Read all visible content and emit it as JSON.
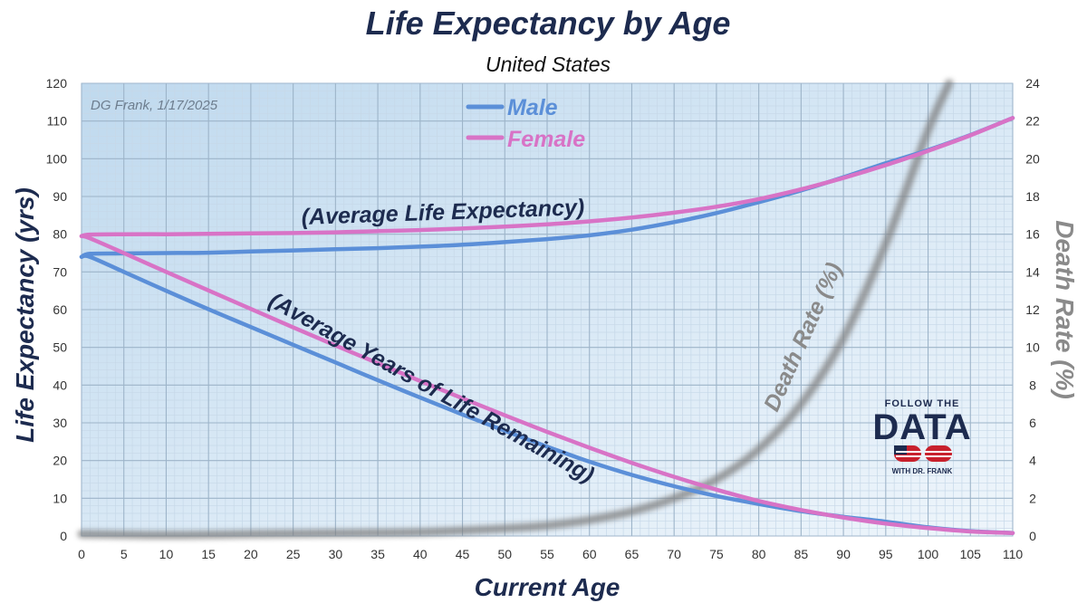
{
  "chart_data": {
    "type": "line",
    "title": "Life Expectancy by Age",
    "subtitle": "United States",
    "credit": "DG Frank, 1/17/2025",
    "xlabel": "Current Age",
    "ylabel": "Life Expectancy (yrs)",
    "y2label": "Death Rate (%)",
    "xlim": [
      0,
      110
    ],
    "ylim": [
      0,
      120
    ],
    "y2lim": [
      0,
      24
    ],
    "x_ticks": [
      0,
      5,
      10,
      15,
      20,
      25,
      30,
      35,
      40,
      45,
      50,
      55,
      60,
      65,
      70,
      75,
      80,
      85,
      90,
      95,
      100,
      105,
      110
    ],
    "y_ticks": [
      0,
      10,
      20,
      30,
      40,
      50,
      60,
      70,
      80,
      90,
      100,
      110,
      120
    ],
    "y2_ticks": [
      0,
      2,
      4,
      6,
      8,
      10,
      12,
      14,
      16,
      18,
      20,
      22,
      24
    ],
    "grid": true,
    "legend": {
      "position": "top-center",
      "entries": [
        "Male",
        "Female"
      ]
    },
    "colors": {
      "male": "#5b8fd8",
      "female": "#d873c6",
      "death": "#8a8a8a",
      "title": "#1d2b4f"
    },
    "annotations": [
      "(Average Life Expectancy)",
      "(Average Years of Life Remaining)",
      "Death Rate (%)"
    ],
    "series": [
      {
        "name": "Male",
        "kind": "average-life-expectancy",
        "x": [
          0,
          1,
          5,
          10,
          15,
          20,
          25,
          30,
          35,
          40,
          45,
          50,
          55,
          60,
          65,
          70,
          75,
          80,
          85,
          90,
          95,
          100,
          105,
          110
        ],
        "values": [
          74.0,
          74.8,
          74.9,
          75.0,
          75.1,
          75.4,
          75.7,
          76.0,
          76.3,
          76.7,
          77.2,
          77.9,
          78.7,
          79.7,
          81.2,
          83.2,
          85.6,
          88.5,
          91.6,
          95.1,
          98.8,
          102.3,
          106.3,
          110.8
        ]
      },
      {
        "name": "Female",
        "kind": "average-life-expectancy",
        "x": [
          0,
          1,
          5,
          10,
          15,
          20,
          25,
          30,
          35,
          40,
          45,
          50,
          55,
          60,
          65,
          70,
          75,
          80,
          85,
          90,
          95,
          100,
          105,
          110
        ],
        "values": [
          79.5,
          79.9,
          80.0,
          80.0,
          80.1,
          80.2,
          80.3,
          80.5,
          80.8,
          81.1,
          81.5,
          82.0,
          82.6,
          83.4,
          84.4,
          85.7,
          87.3,
          89.3,
          91.9,
          94.9,
          98.3,
          102.1,
          106.2,
          110.8
        ]
      },
      {
        "name": "Male",
        "kind": "years-remaining",
        "x": [
          0,
          1,
          5,
          10,
          15,
          20,
          25,
          30,
          35,
          40,
          45,
          50,
          55,
          60,
          65,
          70,
          75,
          80,
          85,
          90,
          95,
          100,
          105,
          110
        ],
        "values": [
          74.0,
          74.0,
          70.0,
          65.0,
          60.1,
          55.4,
          50.7,
          46.0,
          41.3,
          36.7,
          32.2,
          27.9,
          23.7,
          19.7,
          16.2,
          13.2,
          10.6,
          8.5,
          6.6,
          5.1,
          3.8,
          2.3,
          1.3,
          0.8
        ]
      },
      {
        "name": "Female",
        "kind": "years-remaining",
        "x": [
          0,
          1,
          5,
          10,
          15,
          20,
          25,
          30,
          35,
          40,
          45,
          50,
          55,
          60,
          65,
          70,
          75,
          80,
          85,
          90,
          95,
          100,
          105,
          110
        ],
        "values": [
          79.5,
          78.9,
          75.0,
          70.0,
          65.1,
          60.2,
          55.3,
          50.5,
          45.8,
          41.1,
          36.5,
          32.0,
          27.6,
          23.4,
          19.4,
          15.7,
          12.3,
          9.3,
          6.9,
          4.9,
          3.3,
          2.1,
          1.2,
          0.8
        ]
      },
      {
        "name": "Death Rate",
        "kind": "death-rate-percent",
        "axis": "right",
        "x": [
          0,
          10,
          20,
          30,
          40,
          50,
          55,
          60,
          65,
          70,
          75,
          80,
          85,
          90,
          95,
          100,
          102.5
        ],
        "values": [
          0.1,
          0.05,
          0.1,
          0.15,
          0.2,
          0.4,
          0.55,
          0.85,
          1.3,
          2.0,
          3.0,
          4.6,
          7.0,
          10.5,
          15.5,
          21.5,
          24.0
        ]
      }
    ]
  },
  "logo": {
    "line1": "FOLLOW THE",
    "line2": "DATA",
    "line3": "WITH DR. FRANK"
  }
}
